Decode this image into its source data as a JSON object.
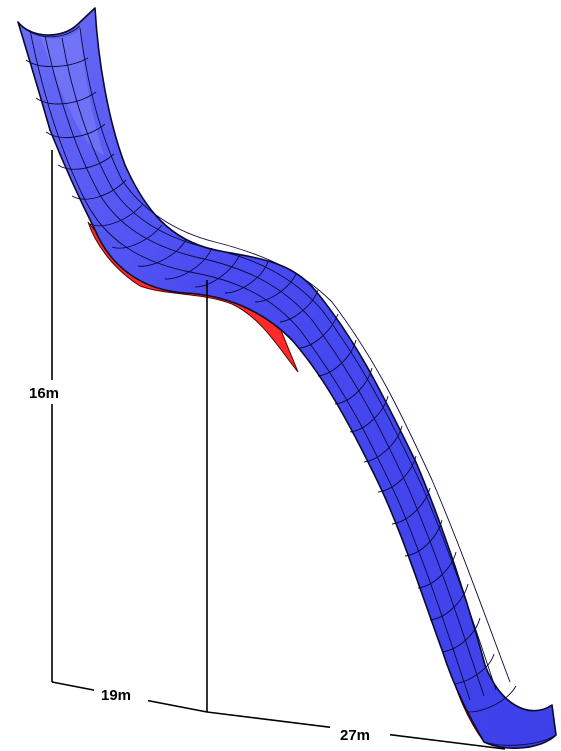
{
  "figure": {
    "colors": {
      "slide_surface": "#4a4cf2",
      "slide_highlight": "#7d7ff7",
      "slide_underside": "#ff2a2a",
      "mesh_lines": "#0a0a40",
      "dimension_lines": "#000000",
      "background": "#ffffff"
    },
    "labels": {
      "height": "16m",
      "horizontal_first": "19m",
      "horizontal_second": "27m"
    }
  }
}
